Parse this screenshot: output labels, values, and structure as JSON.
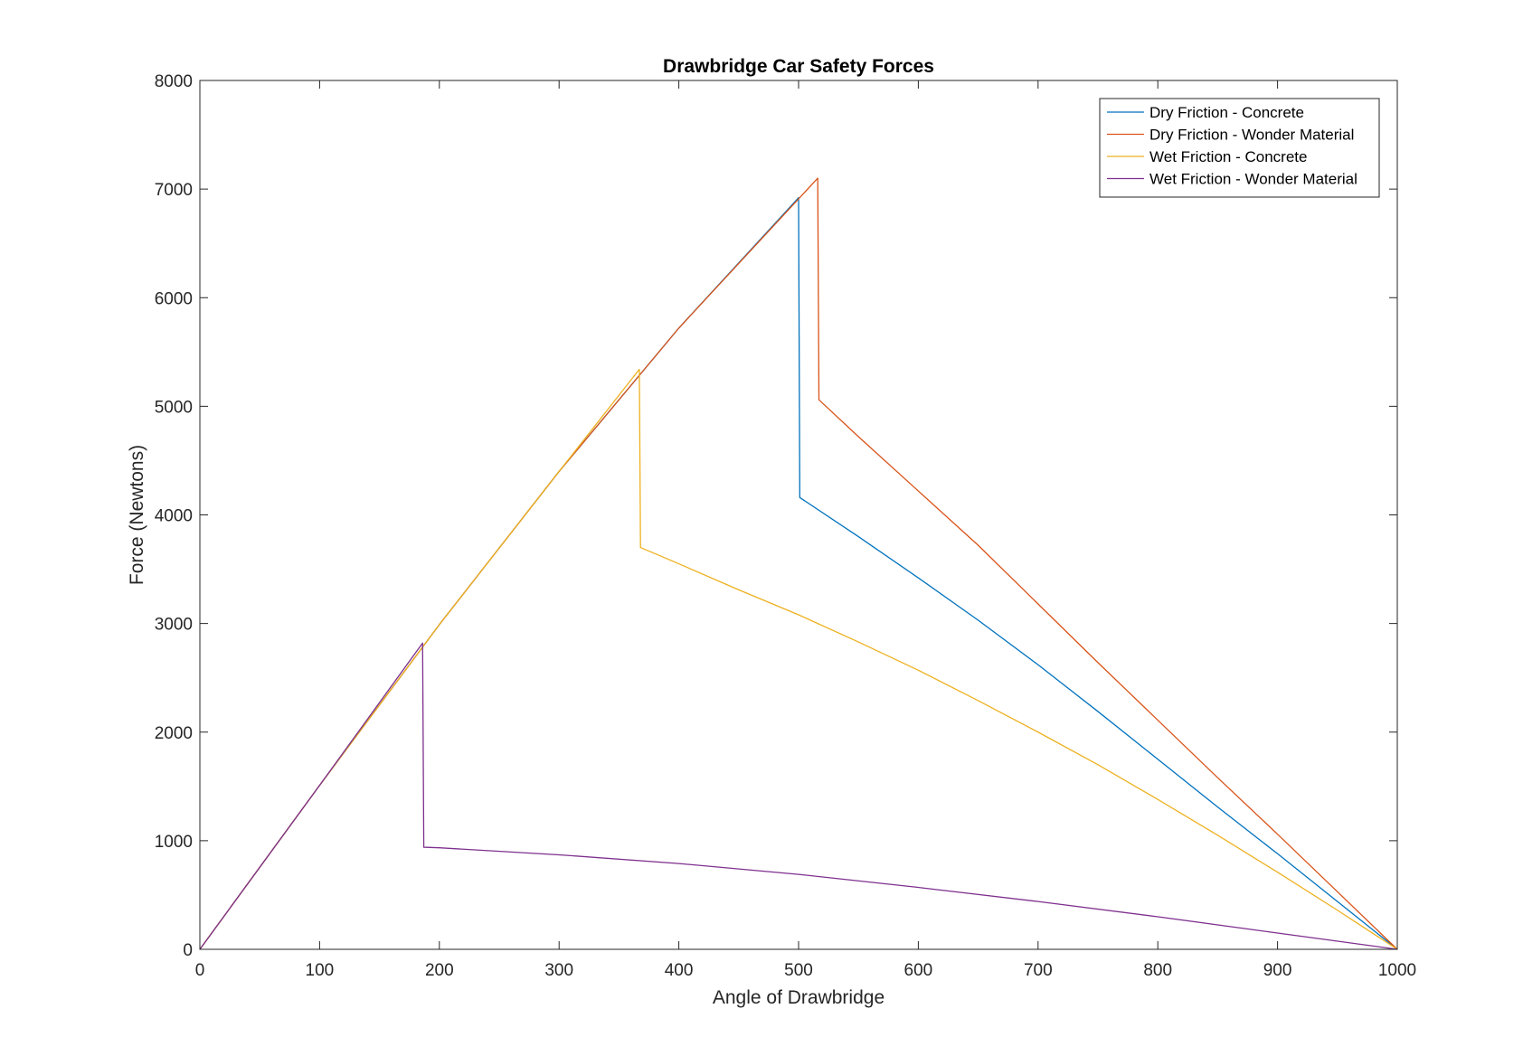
{
  "chart_data": {
    "type": "line",
    "title": "Drawbridge Car Safety Forces",
    "xlabel": "Angle of Drawbridge",
    "ylabel": "Force (Newtons)",
    "xlim": [
      0,
      1000
    ],
    "ylim": [
      0,
      8000
    ],
    "xticks": [
      0,
      100,
      200,
      300,
      400,
      500,
      600,
      700,
      800,
      900,
      1000
    ],
    "yticks": [
      0,
      1000,
      2000,
      3000,
      4000,
      5000,
      6000,
      7000,
      8000
    ],
    "grid": false,
    "legend_position": "top-right",
    "series": [
      {
        "name": "Dry Friction - Concrete",
        "color": "#0072BD",
        "x": [
          0,
          100,
          200,
          300,
          400,
          500,
          501,
          550,
          600,
          650,
          700,
          750,
          800,
          850,
          900,
          950,
          1000
        ],
        "y": [
          0,
          1510,
          2990,
          4400,
          5720,
          6920,
          4160,
          3800,
          3420,
          3030,
          2620,
          2190,
          1750,
          1310,
          880,
          440,
          0
        ]
      },
      {
        "name": "Dry Friction - Wonder Material",
        "color": "#D95319",
        "x": [
          0,
          100,
          200,
          300,
          400,
          516,
          517,
          550,
          600,
          650,
          700,
          750,
          800,
          850,
          900,
          950,
          1000
        ],
        "y": [
          0,
          1510,
          2990,
          4400,
          5720,
          7100,
          5060,
          4720,
          4220,
          3720,
          3180,
          2640,
          2110,
          1580,
          1060,
          530,
          0
        ]
      },
      {
        "name": "Wet Friction - Concrete",
        "color": "#EDB120",
        "x": [
          0,
          100,
          200,
          300,
          367,
          368,
          400,
          450,
          500,
          550,
          600,
          650,
          700,
          750,
          800,
          850,
          900,
          950,
          1000
        ],
        "y": [
          0,
          1510,
          2990,
          4400,
          5340,
          3700,
          3550,
          3310,
          3080,
          2830,
          2570,
          2290,
          2000,
          1700,
          1380,
          1050,
          710,
          360,
          0
        ]
      },
      {
        "name": "Wet Friction - Wonder Material",
        "color": "#7E2F8E",
        "x": [
          0,
          100,
          186,
          187,
          200,
          300,
          400,
          500,
          600,
          700,
          800,
          900,
          1000
        ],
        "y": [
          0,
          1510,
          2820,
          940,
          935,
          870,
          790,
          690,
          570,
          440,
          300,
          150,
          0
        ]
      }
    ]
  }
}
